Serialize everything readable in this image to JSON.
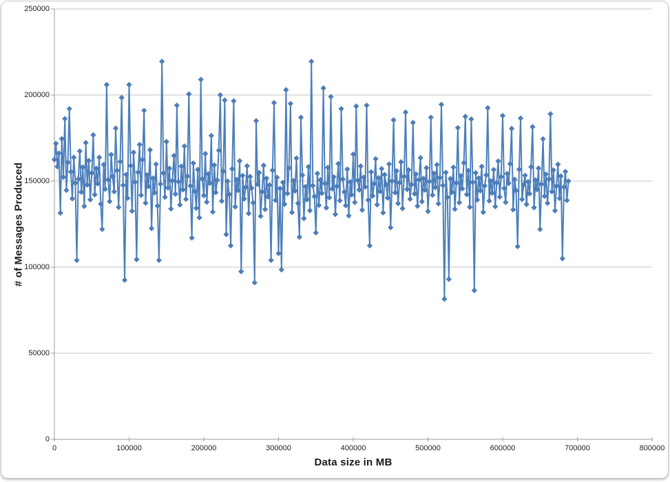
{
  "colors": {
    "series": "#4C7FBC",
    "marker_edge": "#3A6494",
    "gridline": "#C6C6C6",
    "axis": "#9B9B9B",
    "tick_label": "#202020",
    "frame_border": "#C9C9C9",
    "background": "#FFFFFF"
  },
  "chart_data": {
    "type": "line",
    "title": "",
    "xlabel": "Data size in MB",
    "ylabel": "# of Messages Produced",
    "xlim": [
      0,
      800000
    ],
    "ylim": [
      0,
      250000
    ],
    "x_ticks": [
      0,
      100000,
      200000,
      300000,
      400000,
      500000,
      600000,
      700000,
      800000
    ],
    "y_ticks": [
      0,
      50000,
      100000,
      150000,
      200000,
      250000
    ],
    "grid": "horizontal",
    "legend": "none",
    "series": [
      {
        "name": "# of Messages Produced",
        "marker": "diamond",
        "color": "#4C7FBC",
        "x_start": 0,
        "x_step": 2000,
        "values": [
          162500,
          171800,
          158400,
          166200,
          131500,
          174600,
          152300,
          186200,
          144700,
          160900,
          192000,
          155400,
          139800,
          163700,
          148900,
          104000,
          151200,
          167400,
          143600,
          158100,
          135400,
          172300,
          147800,
          161900,
          139200,
          154700,
          176800,
          142100,
          157300,
          148500,
          163800,
          136700,
          122000,
          159600,
          145300,
          206000,
          150800,
          138200,
          165400,
          152700,
          143900,
          180700,
          156200,
          134800,
          161300,
          198500,
          147600,
          92500,
          153800,
          140100,
          206000,
          158900,
          132600,
          166700,
          149400,
          104500,
          155100,
          171200,
          141800,
          162400,
          191000,
          137300,
          153600,
          146900,
          168100,
          122500,
          151700,
          143200,
          159800,
          135600,
          104000,
          148300,
          219500,
          154600,
          140700,
          172900,
          146100,
          157400,
          133900,
          150200,
          164800,
          142500,
          194000,
          149700,
          136200,
          158600,
          145000,
          170300,
          139500,
          152800,
          200500,
          147200,
          117000,
          160400,
          144100,
          134300,
          156700,
          128800,
          209000,
          151300,
          141600,
          165900,
          137800,
          154200,
          148800,
          176400,
          132100,
          159300,
          143400,
          150600,
          167800,
          200000,
          138400,
          155700,
          197000,
          119000,
          149900,
          142300,
          112500,
          157100,
          196500,
          135100,
          150900,
          144600,
          161700,
          97500,
          153200,
          139700,
          146400,
          158800,
          131200,
          152600,
          145900,
          137400,
          91000,
          185000,
          148100,
          154900,
          129600,
          143800,
          159100,
          133600,
          151600,
          140900,
          147700,
          104000,
          156300,
          195500,
          138900,
          152100,
          108000,
          145700,
          98500,
          149200,
          136600,
          203000,
          142800,
          157600,
          195000,
          131800,
          150300,
          144300,
          163300,
          137100,
          117500,
          187000,
          153400,
          128300,
          146800,
          139300,
          158300,
          132900,
          219500,
          147400,
          141100,
          120000,
          154400,
          136000,
          150700,
          143000,
          204000,
          148600,
          134500,
          157900,
          140400,
          199000,
          145500,
          152400,
          130700,
          147000,
          160100,
          138700,
          192000,
          151100,
          143700,
          135800,
          156900,
          129900,
          149500,
          142000,
          165600,
          137600,
          193500,
          150500,
          144900,
          158700,
          133200,
          152200,
          146600,
          194000,
          139000,
          112500,
          155300,
          141400,
          148400,
          162900,
          136300,
          151900,
          144000,
          157200,
          131600,
          153700,
          147900,
          140200,
          159900,
          123000,
          150000,
          185500,
          143300,
          155900,
          137000,
          149100,
          161100,
          134100,
          152700,
          190000,
          145200,
          156500,
          139600,
          148000,
          184000,
          142600,
          154100,
          135500,
          150800,
          163500,
          138100,
          151500,
          144800,
          157700,
          132400,
          149800,
          187000,
          141900,
          154500,
          146300,
          159500,
          136900,
          152000,
          194500,
          147500,
          81500,
          155000,
          140600,
          93000,
          151400,
          143500,
          158000,
          133700,
          148900,
          181000,
          137500,
          153100,
          145600,
          160600,
          187500,
          142200,
          156100,
          134900,
          186000,
          149300,
          86500,
          154800,
          139100,
          151800,
          144400,
          158500,
          131900,
          147300,
          153500,
          192500,
          138500,
          150100,
          143100,
          156600,
          135200,
          149000,
          161600,
          140800,
          152500,
          188000,
          145800,
          137700,
          154300,
          148700,
          160000,
          180500,
          133400,
          151000,
          144500,
          112000,
          156800,
          186500,
          139400,
          147800,
          153300,
          136500,
          149600,
          142700,
          158200,
          181500,
          134600,
          150600,
          145100,
          157500,
          122000,
          148200,
          174500,
          141200,
          154000,
          137200,
          151200,
          189000,
          143900,
          156400,
          132800,
          147100,
          159700,
          140000,
          152900,
          105000,
          146500,
          155500,
          138800,
          150000
        ]
      }
    ]
  }
}
